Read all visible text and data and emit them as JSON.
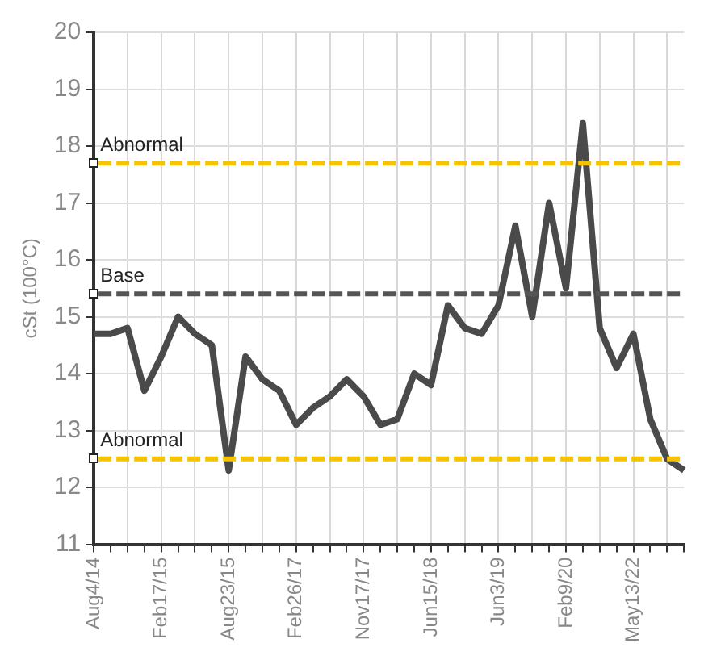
{
  "chart_data": {
    "type": "line",
    "ylabel": "cSt (100°C)",
    "categories": [
      "Aug4/14",
      null,
      null,
      null,
      "Feb17/15",
      null,
      null,
      null,
      "Aug23/15",
      null,
      null,
      null,
      "Feb26/17",
      null,
      null,
      null,
      "Nov17/17",
      null,
      null,
      null,
      "Jun15/18",
      null,
      null,
      null,
      "Jun3/19",
      null,
      null,
      null,
      "Feb9/20",
      null,
      null,
      null,
      "May13/22",
      null,
      null,
      null
    ],
    "series": [
      {
        "color": "#4a4a4a",
        "values": [
          14.7,
          14.7,
          14.8,
          13.7,
          14.3,
          15.0,
          14.7,
          14.5,
          12.3,
          14.3,
          13.9,
          13.7,
          13.1,
          13.4,
          13.6,
          13.9,
          13.6,
          13.1,
          13.2,
          14.0,
          13.8,
          15.2,
          14.8,
          14.7,
          15.2,
          16.6,
          15.0,
          17.0,
          15.5,
          18.4,
          14.8,
          14.1,
          14.7,
          13.2,
          12.5,
          12.3
        ]
      }
    ],
    "ylim": [
      11,
      20
    ],
    "yticks": [
      11,
      12,
      13,
      14,
      15,
      16,
      17,
      18,
      19,
      20
    ],
    "grid": true,
    "marker": "none",
    "line_style": "solid",
    "legend": false,
    "ref_lines": [
      {
        "axis": "y",
        "value": 17.7,
        "label": "Abnormal",
        "color": "#f5c400",
        "line_style": "dashed"
      },
      {
        "axis": "y",
        "value": 15.4,
        "label": "Base",
        "color": "#555555",
        "line_style": "dashed"
      },
      {
        "axis": "y",
        "value": 12.5,
        "label": "Abnormal",
        "color": "#f5c400",
        "line_style": "dashed"
      }
    ]
  }
}
